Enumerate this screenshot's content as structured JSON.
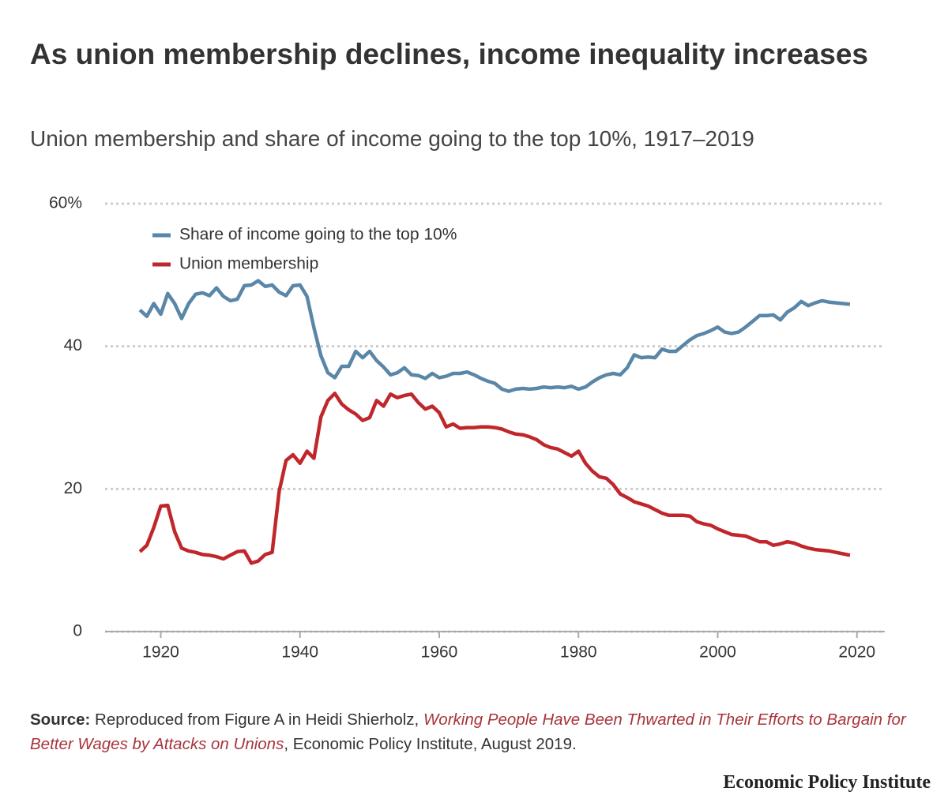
{
  "chart_data": {
    "type": "line",
    "title": "As union membership declines, income inequality increases",
    "subtitle": "Union membership and share of income going to the top 10%, 1917–2019",
    "x": [
      1917,
      1918,
      1919,
      1920,
      1921,
      1922,
      1923,
      1924,
      1925,
      1926,
      1927,
      1928,
      1929,
      1930,
      1931,
      1932,
      1933,
      1934,
      1935,
      1936,
      1937,
      1938,
      1939,
      1940,
      1941,
      1942,
      1943,
      1944,
      1945,
      1946,
      1947,
      1948,
      1949,
      1950,
      1951,
      1952,
      1953,
      1954,
      1955,
      1956,
      1957,
      1958,
      1959,
      1960,
      1961,
      1962,
      1963,
      1964,
      1965,
      1966,
      1967,
      1968,
      1969,
      1970,
      1971,
      1972,
      1973,
      1974,
      1975,
      1976,
      1977,
      1978,
      1979,
      1980,
      1981,
      1982,
      1983,
      1984,
      1985,
      1986,
      1987,
      1988,
      1989,
      1990,
      1991,
      1992,
      1993,
      1994,
      1995,
      1996,
      1997,
      1998,
      1999,
      2000,
      2001,
      2002,
      2003,
      2004,
      2005,
      2006,
      2007,
      2008,
      2009,
      2010,
      2011,
      2012,
      2013,
      2014,
      2015,
      2016,
      2017,
      2018,
      2019
    ],
    "series": [
      {
        "name": "Share of income going to the top 10%",
        "color": "#5a86a8",
        "values": [
          45.1,
          44.2,
          46,
          44.5,
          47.4,
          46,
          43.9,
          46,
          47.3,
          47.5,
          47.1,
          48.2,
          47,
          46.4,
          46.6,
          48.5,
          48.6,
          49.2,
          48.4,
          48.6,
          47.6,
          47.1,
          48.5,
          48.6,
          47,
          42.6,
          38.7,
          36.3,
          35.6,
          37.2,
          37.2,
          39.3,
          38.4,
          39.3,
          38,
          37.1,
          36,
          36.3,
          37,
          36,
          35.9,
          35.5,
          36.2,
          35.6,
          35.8,
          36.2,
          36.2,
          36.4,
          36,
          35.5,
          35.1,
          34.8,
          34,
          33.7,
          34,
          34.1,
          34,
          34.1,
          34.3,
          34.2,
          34.3,
          34.2,
          34.4,
          34,
          34.3,
          35,
          35.6,
          36,
          36.2,
          36,
          37,
          38.8,
          38.4,
          38.5,
          38.4,
          39.6,
          39.3,
          39.3,
          40.1,
          40.9,
          41.5,
          41.8,
          42.2,
          42.7,
          42,
          41.8,
          42,
          42.7,
          43.5,
          44.3,
          44.3,
          44.4,
          43.7,
          44.8,
          45.4,
          46.3,
          45.7,
          46.1,
          46.4,
          46.2,
          46.1,
          46,
          45.9
        ]
      },
      {
        "name": "Union membership",
        "color": "#c0272d",
        "values": [
          11.2,
          12.1,
          14.6,
          17.6,
          17.7,
          14,
          11.7,
          11.3,
          11.1,
          10.8,
          10.7,
          10.5,
          10.2,
          10.7,
          11.2,
          11.3,
          9.6,
          9.9,
          10.8,
          11.1,
          19.6,
          24,
          24.8,
          23.6,
          25.3,
          24.3,
          30.1,
          32.4,
          33.4,
          31.9,
          31.1,
          30.5,
          29.6,
          30,
          32.4,
          31.6,
          33.3,
          32.8,
          33.1,
          33.3,
          32.1,
          31.2,
          31.6,
          30.7,
          28.7,
          29.1,
          28.5,
          28.6,
          28.6,
          28.7,
          28.7,
          28.6,
          28.4,
          28,
          27.7,
          27.6,
          27.3,
          26.9,
          26.2,
          25.8,
          25.6,
          25.1,
          24.6,
          25.3,
          23.6,
          22.5,
          21.7,
          21.5,
          20.6,
          19.3,
          18.8,
          18.2,
          17.9,
          17.6,
          17.1,
          16.6,
          16.3,
          16.3,
          16.3,
          16.2,
          15.4,
          15.1,
          14.9,
          14.4,
          14,
          13.6,
          13.5,
          13.4,
          13,
          12.6,
          12.6,
          12.1,
          12.3,
          12.6,
          12.4,
          12,
          11.7,
          11.5,
          11.4,
          11.3,
          11.1,
          10.9,
          10.7
        ]
      }
    ],
    "xlim": [
      1912,
      2024
    ],
    "xticks": [
      1920,
      1940,
      1960,
      1980,
      2000,
      2020
    ],
    "ylim": [
      0,
      60
    ],
    "yticks": [
      0,
      20,
      40,
      {
        "value": 60,
        "label": "60%"
      }
    ],
    "grid": true,
    "legend": "top-left",
    "source": {
      "label": "Source:",
      "text": "Reproduced from Figure A in Heidi Shierholz, ",
      "link": "Working People Have Been Thwarted in Their Efforts to Bargain for Better Wages by Attacks on Unions",
      "rest": ", Economic Policy Institute, August 2019."
    },
    "brand": "Economic Policy Institute"
  }
}
